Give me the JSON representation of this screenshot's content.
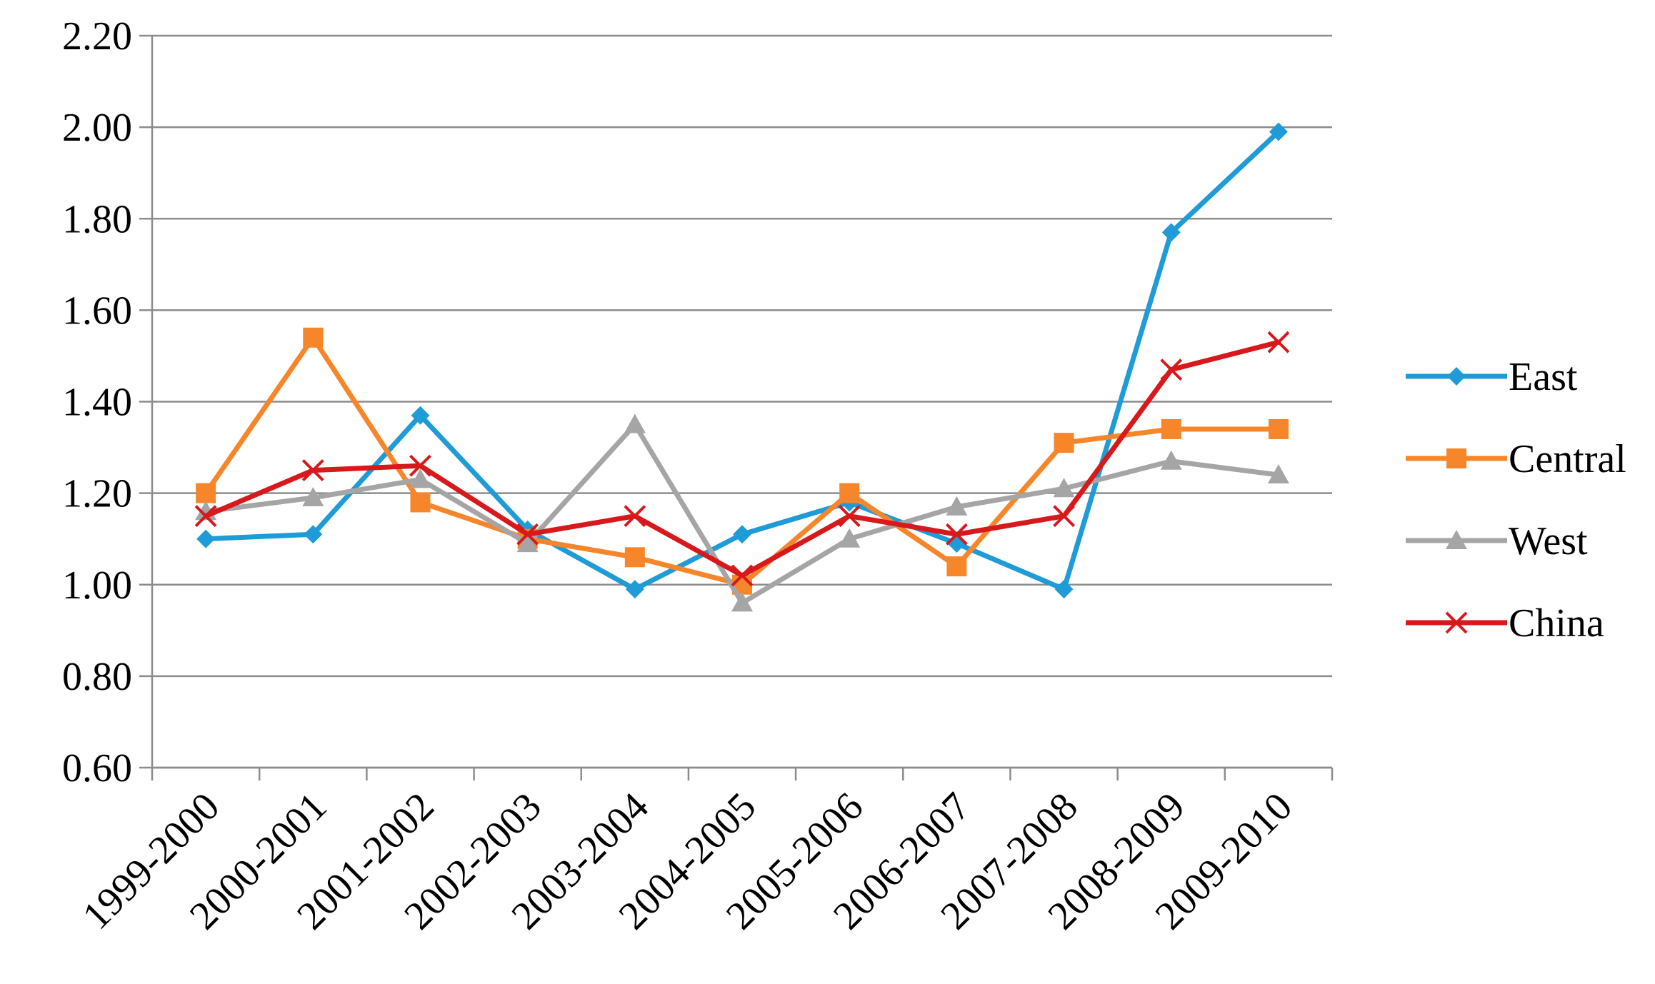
{
  "chart_data": {
    "type": "line",
    "title": "",
    "xlabel": "",
    "ylabel": "",
    "categories": [
      "1999-2000",
      "2000-2001",
      "2001-2002",
      "2002-2003",
      "2003-2004",
      "2004-2005",
      "2005-2006",
      "2006-2007",
      "2007-2008",
      "2008-2009",
      "2009-2010"
    ],
    "ylim": [
      0.6,
      2.2
    ],
    "yticks": [
      0.6,
      0.8,
      1.0,
      1.2,
      1.4,
      1.6,
      1.8,
      2.0,
      2.2
    ],
    "ytick_labels": [
      "0.60",
      "0.80",
      "1.00",
      "1.20",
      "1.40",
      "1.60",
      "1.80",
      "2.00",
      "2.20"
    ],
    "grid": true,
    "legend_position": "right",
    "series": [
      {
        "name": "East",
        "color": "#1f9bd7",
        "marker": "diamond",
        "values": [
          1.1,
          1.11,
          1.37,
          1.12,
          0.99,
          1.11,
          1.18,
          1.09,
          0.99,
          1.77,
          1.99
        ]
      },
      {
        "name": "Central",
        "color": "#f7862b",
        "marker": "square",
        "values": [
          1.2,
          1.54,
          1.18,
          1.1,
          1.06,
          1.0,
          1.2,
          1.04,
          1.31,
          1.34,
          1.34
        ]
      },
      {
        "name": "West",
        "color": "#a5a5a5",
        "marker": "triangle",
        "values": [
          1.16,
          1.19,
          1.23,
          1.09,
          1.35,
          0.96,
          1.1,
          1.17,
          1.21,
          1.27,
          1.24
        ]
      },
      {
        "name": "China",
        "color": "#d7191c",
        "marker": "x",
        "values": [
          1.15,
          1.25,
          1.26,
          1.11,
          1.15,
          1.02,
          1.15,
          1.11,
          1.15,
          1.47,
          1.53
        ]
      }
    ]
  }
}
